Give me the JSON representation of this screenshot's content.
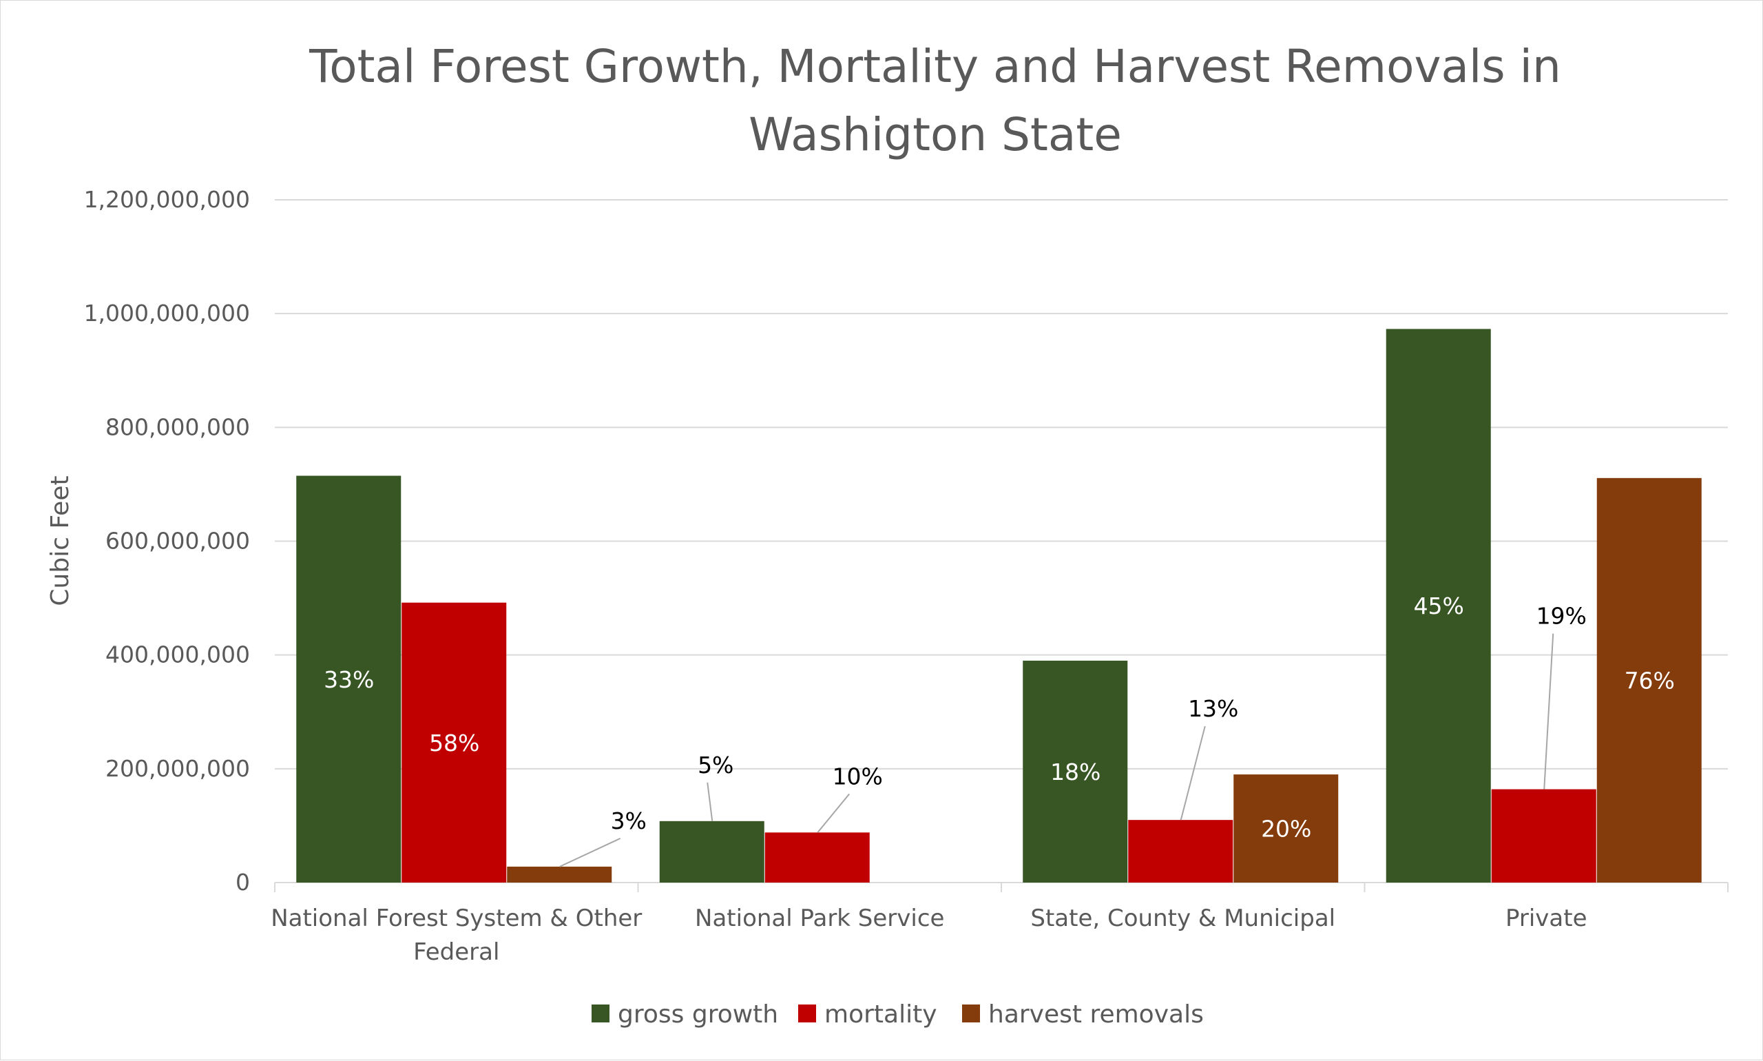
{
  "chart_data": {
    "type": "bar",
    "title_lines": [
      "Total Forest Growth, Mortality and Harvest Removals in",
      "Washigton State"
    ],
    "xlabel": "",
    "ylabel": "Cubic Feet",
    "ylim": [
      0,
      1200000000
    ],
    "y_ticks": [
      0,
      200000000,
      400000000,
      600000000,
      800000000,
      1000000000,
      1200000000
    ],
    "y_tick_labels": [
      "0",
      "200,000,000",
      "400,000,000",
      "600,000,000",
      "800,000,000",
      "1,000,000,000",
      "1,200,000,000"
    ],
    "grid": true,
    "legend_position": "bottom",
    "categories": [
      [
        "National Forest System & Other",
        "Federal"
      ],
      [
        "National Park Service"
      ],
      [
        "State, County & Municipal"
      ],
      [
        "Private"
      ]
    ],
    "series": [
      {
        "name": "gross growth",
        "color": "#375623",
        "values": [
          715000000,
          108000000,
          390000000,
          973000000
        ],
        "labels": [
          "33%",
          "5%",
          "18%",
          "45%"
        ]
      },
      {
        "name": "mortality",
        "color": "#c00000",
        "values": [
          492000000,
          88000000,
          110000000,
          164000000
        ],
        "labels": [
          "58%",
          "10%",
          "13%",
          "19%"
        ]
      },
      {
        "name": "harvest removals",
        "color": "#843c0c",
        "values": [
          28000000,
          0,
          190000000,
          711000000
        ],
        "labels": [
          "3%",
          "",
          "20%",
          "76%"
        ]
      }
    ]
  }
}
